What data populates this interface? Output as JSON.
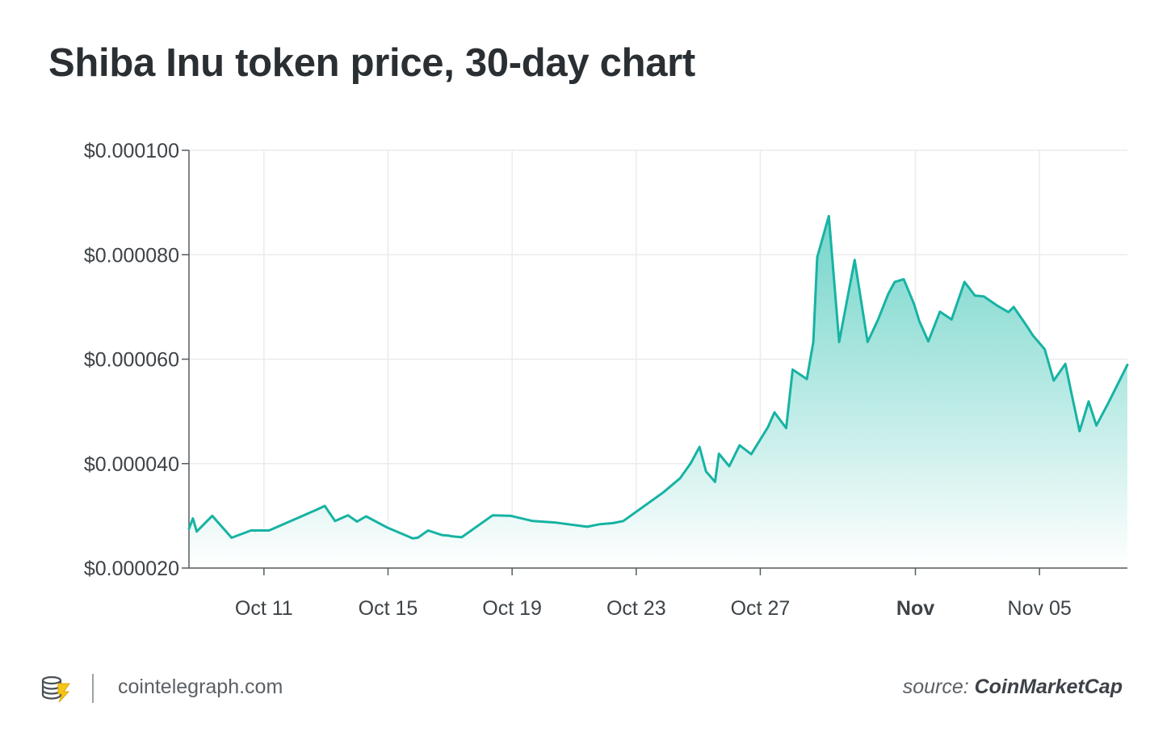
{
  "title": "Shiba Inu token price, 30-day chart",
  "footer": {
    "site": "cointelegraph.com",
    "source_label": "source:",
    "source_name": "CoinMarketCap"
  },
  "colors": {
    "line": "#17b3a3",
    "fill_top": "#6dd3c8",
    "grid": "#e9ebec",
    "axis": "#555b60",
    "text": "#2a2f33"
  },
  "icons": [
    "cointelegraph-logo-icon"
  ],
  "chart_data": {
    "type": "area",
    "title": "Shiba Inu token price, 30-day chart",
    "xlabel": "",
    "ylabel": "",
    "ylim": [
      2e-05,
      0.0001
    ],
    "xlim": [
      "2021-10-08 14:00",
      "2021-11-07 20:00"
    ],
    "grid": true,
    "y_ticks": [
      2e-05,
      4e-05,
      6e-05,
      8e-05,
      0.0001
    ],
    "y_tick_labels": [
      "$0.000020",
      "$0.000040",
      "$0.000060",
      "$0.000080",
      "$0.000100"
    ],
    "x_ticks": [
      "2021-10-11",
      "2021-10-15",
      "2021-10-19",
      "2021-10-23",
      "2021-10-27",
      "2021-11-01",
      "2021-11-05"
    ],
    "x_tick_labels": [
      "Oct 11",
      "Oct 15",
      "Oct 19",
      "Oct 23",
      "Oct 27",
      "Nov",
      "Nov 05"
    ],
    "x_tick_bold": [
      false,
      false,
      false,
      false,
      false,
      true,
      false
    ],
    "series": [
      {
        "x": [
          "2021-10-08 14:00",
          "2021-10-08 17:00",
          "2021-10-08 20:00",
          "2021-10-09 08:00",
          "2021-10-09 23:00",
          "2021-10-10 14:00",
          "2021-10-11 04:00",
          "2021-10-12 17:00",
          "2021-10-12 23:00",
          "2021-10-13 07:00",
          "2021-10-13 17:00",
          "2021-10-14 00:00",
          "2021-10-14 07:00",
          "2021-10-14 23:00",
          "2021-10-15 19:00",
          "2021-10-15 23:00",
          "2021-10-16 07:00",
          "2021-10-16 18:00",
          "2021-10-16 23:00",
          "2021-10-17 01:00",
          "2021-10-17 09:00",
          "2021-10-18 09:00",
          "2021-10-18 23:00",
          "2021-10-19 16:00",
          "2021-10-20 10:00",
          "2021-10-21 10:00",
          "2021-10-21 20:00",
          "2021-10-22 06:00",
          "2021-10-22 14:00",
          "2021-10-23 21:00",
          "2021-10-24 10:00",
          "2021-10-24 18:00",
          "2021-10-25 01:00",
          "2021-10-25 06:00",
          "2021-10-25 13:00",
          "2021-10-25 16:00",
          "2021-10-26 00:00",
          "2021-10-26 08:00",
          "2021-10-26 17:00",
          "2021-10-27 06:00",
          "2021-10-27 11:00",
          "2021-10-27 20:00",
          "2021-10-28 01:00",
          "2021-10-28 12:00",
          "2021-10-28 17:00",
          "2021-10-28 20:00",
          "2021-10-29 05:00",
          "2021-10-29 13:00",
          "2021-10-30 01:00",
          "2021-10-30 11:00",
          "2021-10-30 19:00",
          "2021-10-31 03:00",
          "2021-10-31 08:00",
          "2021-10-31 15:00",
          "2021-10-31 23:00",
          "2021-11-01 03:00",
          "2021-11-01 10:00",
          "2021-11-01 19:00",
          "2021-11-02 04:00",
          "2021-11-02 14:00",
          "2021-11-02 22:00",
          "2021-11-03 05:00",
          "2021-11-03 15:00",
          "2021-11-04 00:00",
          "2021-11-04 04:00",
          "2021-11-04 14:00",
          "2021-11-04 19:00",
          "2021-11-05 04:00",
          "2021-11-05 11:00",
          "2021-11-05 20:00",
          "2021-11-06 00:00",
          "2021-11-06 07:00",
          "2021-11-06 14:00",
          "2021-11-06 20:00",
          "2021-11-07 05:00",
          "2021-11-07 20:00"
        ],
        "y": [
          2.75e-05,
          2.95e-05,
          2.7e-05,
          3e-05,
          2.58e-05,
          2.72e-05,
          2.72e-05,
          3.12e-05,
          3.19e-05,
          2.9e-05,
          3.01e-05,
          2.89e-05,
          2.99e-05,
          2.78e-05,
          2.57e-05,
          2.58e-05,
          2.72e-05,
          2.63e-05,
          2.62e-05,
          2.61e-05,
          2.59e-05,
          3.01e-05,
          3e-05,
          2.9e-05,
          2.87e-05,
          2.79e-05,
          2.84e-05,
          2.86e-05,
          2.9e-05,
          3.45e-05,
          3.72e-05,
          4e-05,
          4.32e-05,
          3.85e-05,
          3.65e-05,
          4.19e-05,
          3.95e-05,
          4.35e-05,
          4.18e-05,
          4.7e-05,
          4.98e-05,
          4.68e-05,
          5.8e-05,
          5.62e-05,
          6.33e-05,
          7.95e-05,
          8.74e-05,
          6.33e-05,
          7.9e-05,
          6.33e-05,
          6.75e-05,
          7.25e-05,
          7.48e-05,
          7.53e-05,
          7.05e-05,
          6.73e-05,
          6.34e-05,
          6.91e-05,
          6.76e-05,
          7.48e-05,
          7.22e-05,
          7.2e-05,
          7.03e-05,
          6.9e-05,
          7e-05,
          6.64e-05,
          6.45e-05,
          6.19e-05,
          5.59e-05,
          5.91e-05,
          5.43e-05,
          4.62e-05,
          5.19e-05,
          4.73e-05,
          5.15e-05,
          5.89e-05
        ]
      }
    ]
  }
}
